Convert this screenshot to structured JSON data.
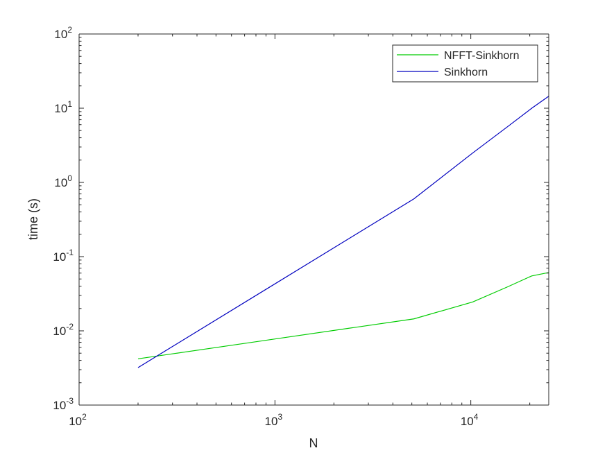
{
  "chart_data": {
    "type": "line",
    "title": "",
    "xlabel": "N",
    "ylabel": "time (s)",
    "xscale": "log",
    "yscale": "log",
    "xlim": [
      100,
      25000
    ],
    "ylim": [
      0.001,
      100
    ],
    "x_ticks": [
      {
        "value": 100,
        "base": "10",
        "exp": "2"
      },
      {
        "value": 1000,
        "base": "10",
        "exp": "3"
      },
      {
        "value": 10000,
        "base": "10",
        "exp": "4"
      }
    ],
    "y_ticks": [
      {
        "value": 0.001,
        "base": "10",
        "exp": "-3"
      },
      {
        "value": 0.01,
        "base": "10",
        "exp": "-2"
      },
      {
        "value": 0.1,
        "base": "10",
        "exp": "-1"
      },
      {
        "value": 1,
        "base": "10",
        "exp": "0"
      },
      {
        "value": 10,
        "base": "10",
        "exp": "1"
      },
      {
        "value": 100,
        "base": "10",
        "exp": "2"
      }
    ],
    "grid": false,
    "legend_position": "top-right",
    "series": [
      {
        "name": "NFFT-Sinkhorn",
        "color": "#00cc00",
        "x": [
          200,
          5120,
          10240,
          15360,
          20480,
          25000
        ],
        "y": [
          0.0042,
          0.0145,
          0.0245,
          0.039,
          0.055,
          0.061
        ]
      },
      {
        "name": "Sinkhorn",
        "color": "#0000bf",
        "x": [
          200,
          5120,
          10240,
          15360,
          20480,
          25000
        ],
        "y": [
          0.0032,
          0.6,
          2.5,
          5.6,
          10.0,
          14.5
        ]
      }
    ]
  }
}
